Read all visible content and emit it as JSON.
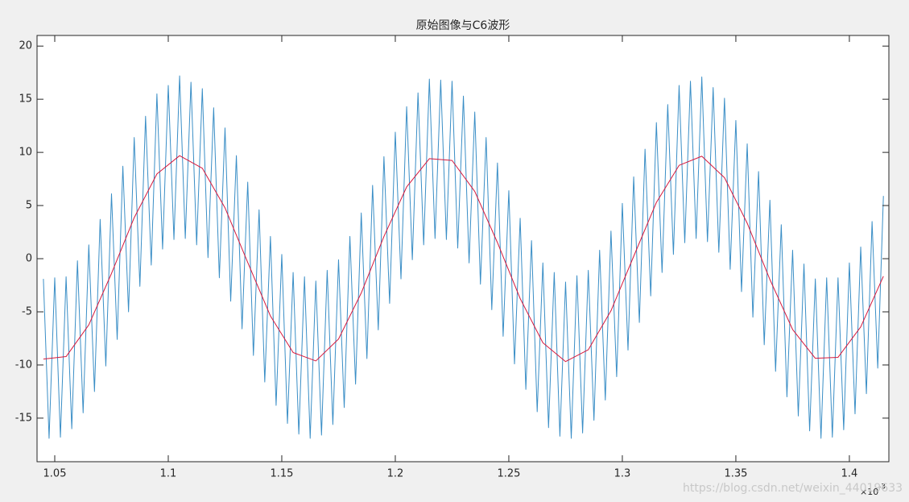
{
  "chart_data": {
    "type": "line",
    "title": "原始图像与C6波形",
    "x_exponent": {
      "base": "×10",
      "power": "-3"
    },
    "watermark": "https://blog.csdn.net/weixin_44019633",
    "xlim": [
      1.0422,
      1.4174
    ],
    "ylim": [
      -19.1,
      21
    ],
    "xticks": [
      1.05,
      1.1,
      1.15,
      1.2,
      1.25,
      1.3,
      1.35,
      1.4
    ],
    "yticks": [
      -15,
      -10,
      -5,
      0,
      5,
      10,
      15,
      20
    ],
    "grid": false,
    "series": [
      {
        "name": "原始图像",
        "color": "#3a8ec6",
        "x": [
          1.045,
          1.0475,
          1.05,
          1.0525,
          1.055,
          1.0575,
          1.06,
          1.0625,
          1.065,
          1.0675,
          1.07,
          1.0725,
          1.075,
          1.0775,
          1.08,
          1.0825,
          1.085,
          1.0875,
          1.09,
          1.0925,
          1.095,
          1.0975,
          1.1,
          1.1025,
          1.105,
          1.1075,
          1.11,
          1.1125,
          1.115,
          1.1175,
          1.12,
          1.1225,
          1.125,
          1.1275,
          1.13,
          1.1325,
          1.135,
          1.1375,
          1.14,
          1.1425,
          1.145,
          1.1475,
          1.15,
          1.1525,
          1.155,
          1.1575,
          1.16,
          1.1625,
          1.165,
          1.1675,
          1.17,
          1.1725,
          1.175,
          1.1775,
          1.18,
          1.1825,
          1.185,
          1.1875,
          1.19,
          1.1925,
          1.195,
          1.1975,
          1.2,
          1.2025,
          1.205,
          1.2075,
          1.21,
          1.2125,
          1.215,
          1.2175,
          1.22,
          1.2225,
          1.225,
          1.2275,
          1.23,
          1.2325,
          1.235,
          1.2375,
          1.24,
          1.2425,
          1.245,
          1.2475,
          1.25,
          1.2525,
          1.255,
          1.2575,
          1.26,
          1.2625,
          1.265,
          1.2675,
          1.27,
          1.2725,
          1.275,
          1.2775,
          1.28,
          1.2825,
          1.285,
          1.2875,
          1.29,
          1.2925,
          1.295,
          1.2975,
          1.3,
          1.3025,
          1.305,
          1.3075,
          1.31,
          1.3125,
          1.315,
          1.3175,
          1.32,
          1.3225,
          1.325,
          1.3275,
          1.33,
          1.3325,
          1.335,
          1.3375,
          1.34,
          1.3425,
          1.345,
          1.3475,
          1.35,
          1.3525,
          1.355,
          1.3575,
          1.36,
          1.3625,
          1.365,
          1.3675,
          1.37,
          1.3725,
          1.375,
          1.3775,
          1.38,
          1.3825,
          1.385,
          1.3875,
          1.39,
          1.3925,
          1.395,
          1.3975,
          1.4,
          1.4025,
          1.405,
          1.4075,
          1.41,
          1.4125,
          1.415
        ],
        "values": [
          -1.9,
          -16.9,
          -1.8,
          -16.8,
          -1.7,
          -16.0,
          -0.2,
          -14.5,
          1.3,
          -12.5,
          3.7,
          -10.1,
          6.1,
          -7.6,
          8.7,
          -5.0,
          11.4,
          -2.6,
          13.4,
          -0.6,
          15.5,
          0.9,
          16.3,
          1.8,
          17.2,
          1.9,
          16.6,
          1.3,
          16.0,
          0.1,
          14.2,
          -1.8,
          12.3,
          -4.0,
          9.7,
          -6.6,
          7.2,
          -9.1,
          4.6,
          -11.6,
          2.1,
          -13.8,
          0.4,
          -15.5,
          -1.3,
          -16.5,
          -1.7,
          -16.9,
          -2.1,
          -16.6,
          -1.1,
          -15.6,
          -0.1,
          -14.0,
          2.1,
          -11.8,
          4.3,
          -9.4,
          6.9,
          -6.7,
          9.6,
          -4.2,
          11.9,
          -1.9,
          14.3,
          -0.1,
          15.6,
          1.3,
          16.9,
          1.9,
          16.8,
          1.8,
          16.7,
          1.0,
          15.3,
          -0.4,
          13.8,
          -2.4,
          11.4,
          -4.8,
          9.0,
          -7.3,
          6.4,
          -9.9,
          3.8,
          -12.3,
          1.7,
          -14.4,
          -0.4,
          -15.9,
          -1.3,
          -16.7,
          -2.2,
          -16.9,
          -1.6,
          -16.4,
          -1.1,
          -15.2,
          0.8,
          -13.3,
          2.6,
          -11.1,
          5.2,
          -8.6,
          7.7,
          -6.0,
          10.3,
          -3.5,
          12.8,
          -1.3,
          14.5,
          0.4,
          16.3,
          1.5,
          16.7,
          1.9,
          17.1,
          1.6,
          16.1,
          0.6,
          15.1,
          -1.0,
          13.0,
          -3.1,
          10.8,
          -5.5,
          8.2,
          -8.1,
          5.5,
          -10.6,
          3.2,
          -13.0,
          0.8,
          -14.8,
          -0.5,
          -16.2,
          -1.9,
          -16.9,
          -1.8,
          -16.8,
          -1.8,
          -16.1,
          -0.4,
          -14.6,
          1.1,
          -12.7,
          3.5,
          -10.3,
          5.9
        ]
      },
      {
        "name": "C6波形",
        "color": "#d6183c",
        "x": [
          1.045,
          1.055,
          1.065,
          1.075,
          1.085,
          1.095,
          1.105,
          1.115,
          1.125,
          1.135,
          1.145,
          1.155,
          1.165,
          1.175,
          1.185,
          1.195,
          1.205,
          1.215,
          1.225,
          1.235,
          1.245,
          1.255,
          1.265,
          1.275,
          1.285,
          1.295,
          1.305,
          1.315,
          1.325,
          1.335,
          1.345,
          1.355,
          1.365,
          1.375,
          1.385,
          1.395,
          1.405,
          1.415
        ],
        "values": [
          -9.44,
          -9.21,
          -6.23,
          -1.39,
          3.86,
          7.97,
          9.69,
          8.51,
          4.78,
          -0.35,
          -5.39,
          -8.83,
          -9.62,
          -7.56,
          -3.23,
          2.09,
          6.75,
          9.41,
          9.24,
          6.33,
          1.51,
          -3.75,
          -7.91,
          -9.68,
          -8.57,
          -4.9,
          0.22,
          5.29,
          8.78,
          9.64,
          7.62,
          3.34,
          -1.96,
          -6.66,
          -9.37,
          -9.28,
          -6.42,
          -1.65
        ]
      }
    ]
  }
}
